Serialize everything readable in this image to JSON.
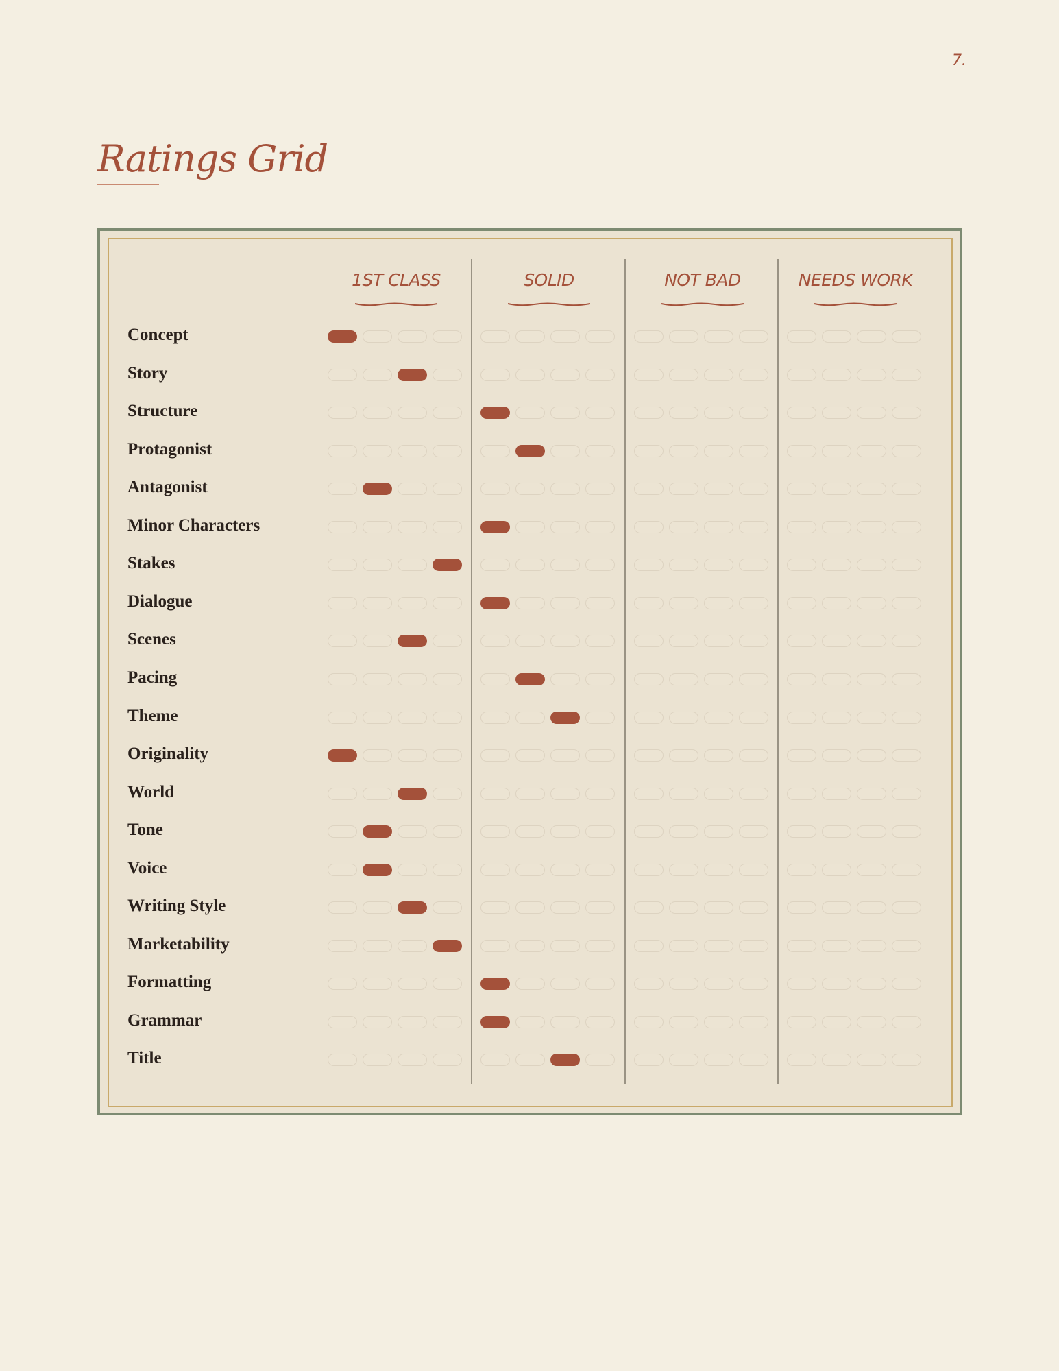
{
  "page_number": "7.",
  "title": "Ratings Grid",
  "columns": [
    "1ST CLASS",
    "SOLID",
    "NOT BAD",
    "NEEDS WORK"
  ],
  "rows": [
    {
      "label": "Concept",
      "selected": 0
    },
    {
      "label": "Story",
      "selected": 2
    },
    {
      "label": "Structure",
      "selected": 4
    },
    {
      "label": "Protagonist",
      "selected": 5
    },
    {
      "label": "Antagonist",
      "selected": 1
    },
    {
      "label": "Minor Characters",
      "selected": 4
    },
    {
      "label": "Stakes",
      "selected": 3
    },
    {
      "label": "Dialogue",
      "selected": 4
    },
    {
      "label": "Scenes",
      "selected": 2
    },
    {
      "label": "Pacing",
      "selected": 5
    },
    {
      "label": "Theme",
      "selected": 6
    },
    {
      "label": "Originality",
      "selected": 0
    },
    {
      "label": "World",
      "selected": 2
    },
    {
      "label": "Tone",
      "selected": 1
    },
    {
      "label": "Voice",
      "selected": 1
    },
    {
      "label": "Writing Style",
      "selected": 2
    },
    {
      "label": "Marketability",
      "selected": 3
    },
    {
      "label": "Formatting",
      "selected": 4
    },
    {
      "label": "Grammar",
      "selected": 4
    },
    {
      "label": "Title",
      "selected": 6
    }
  ]
}
